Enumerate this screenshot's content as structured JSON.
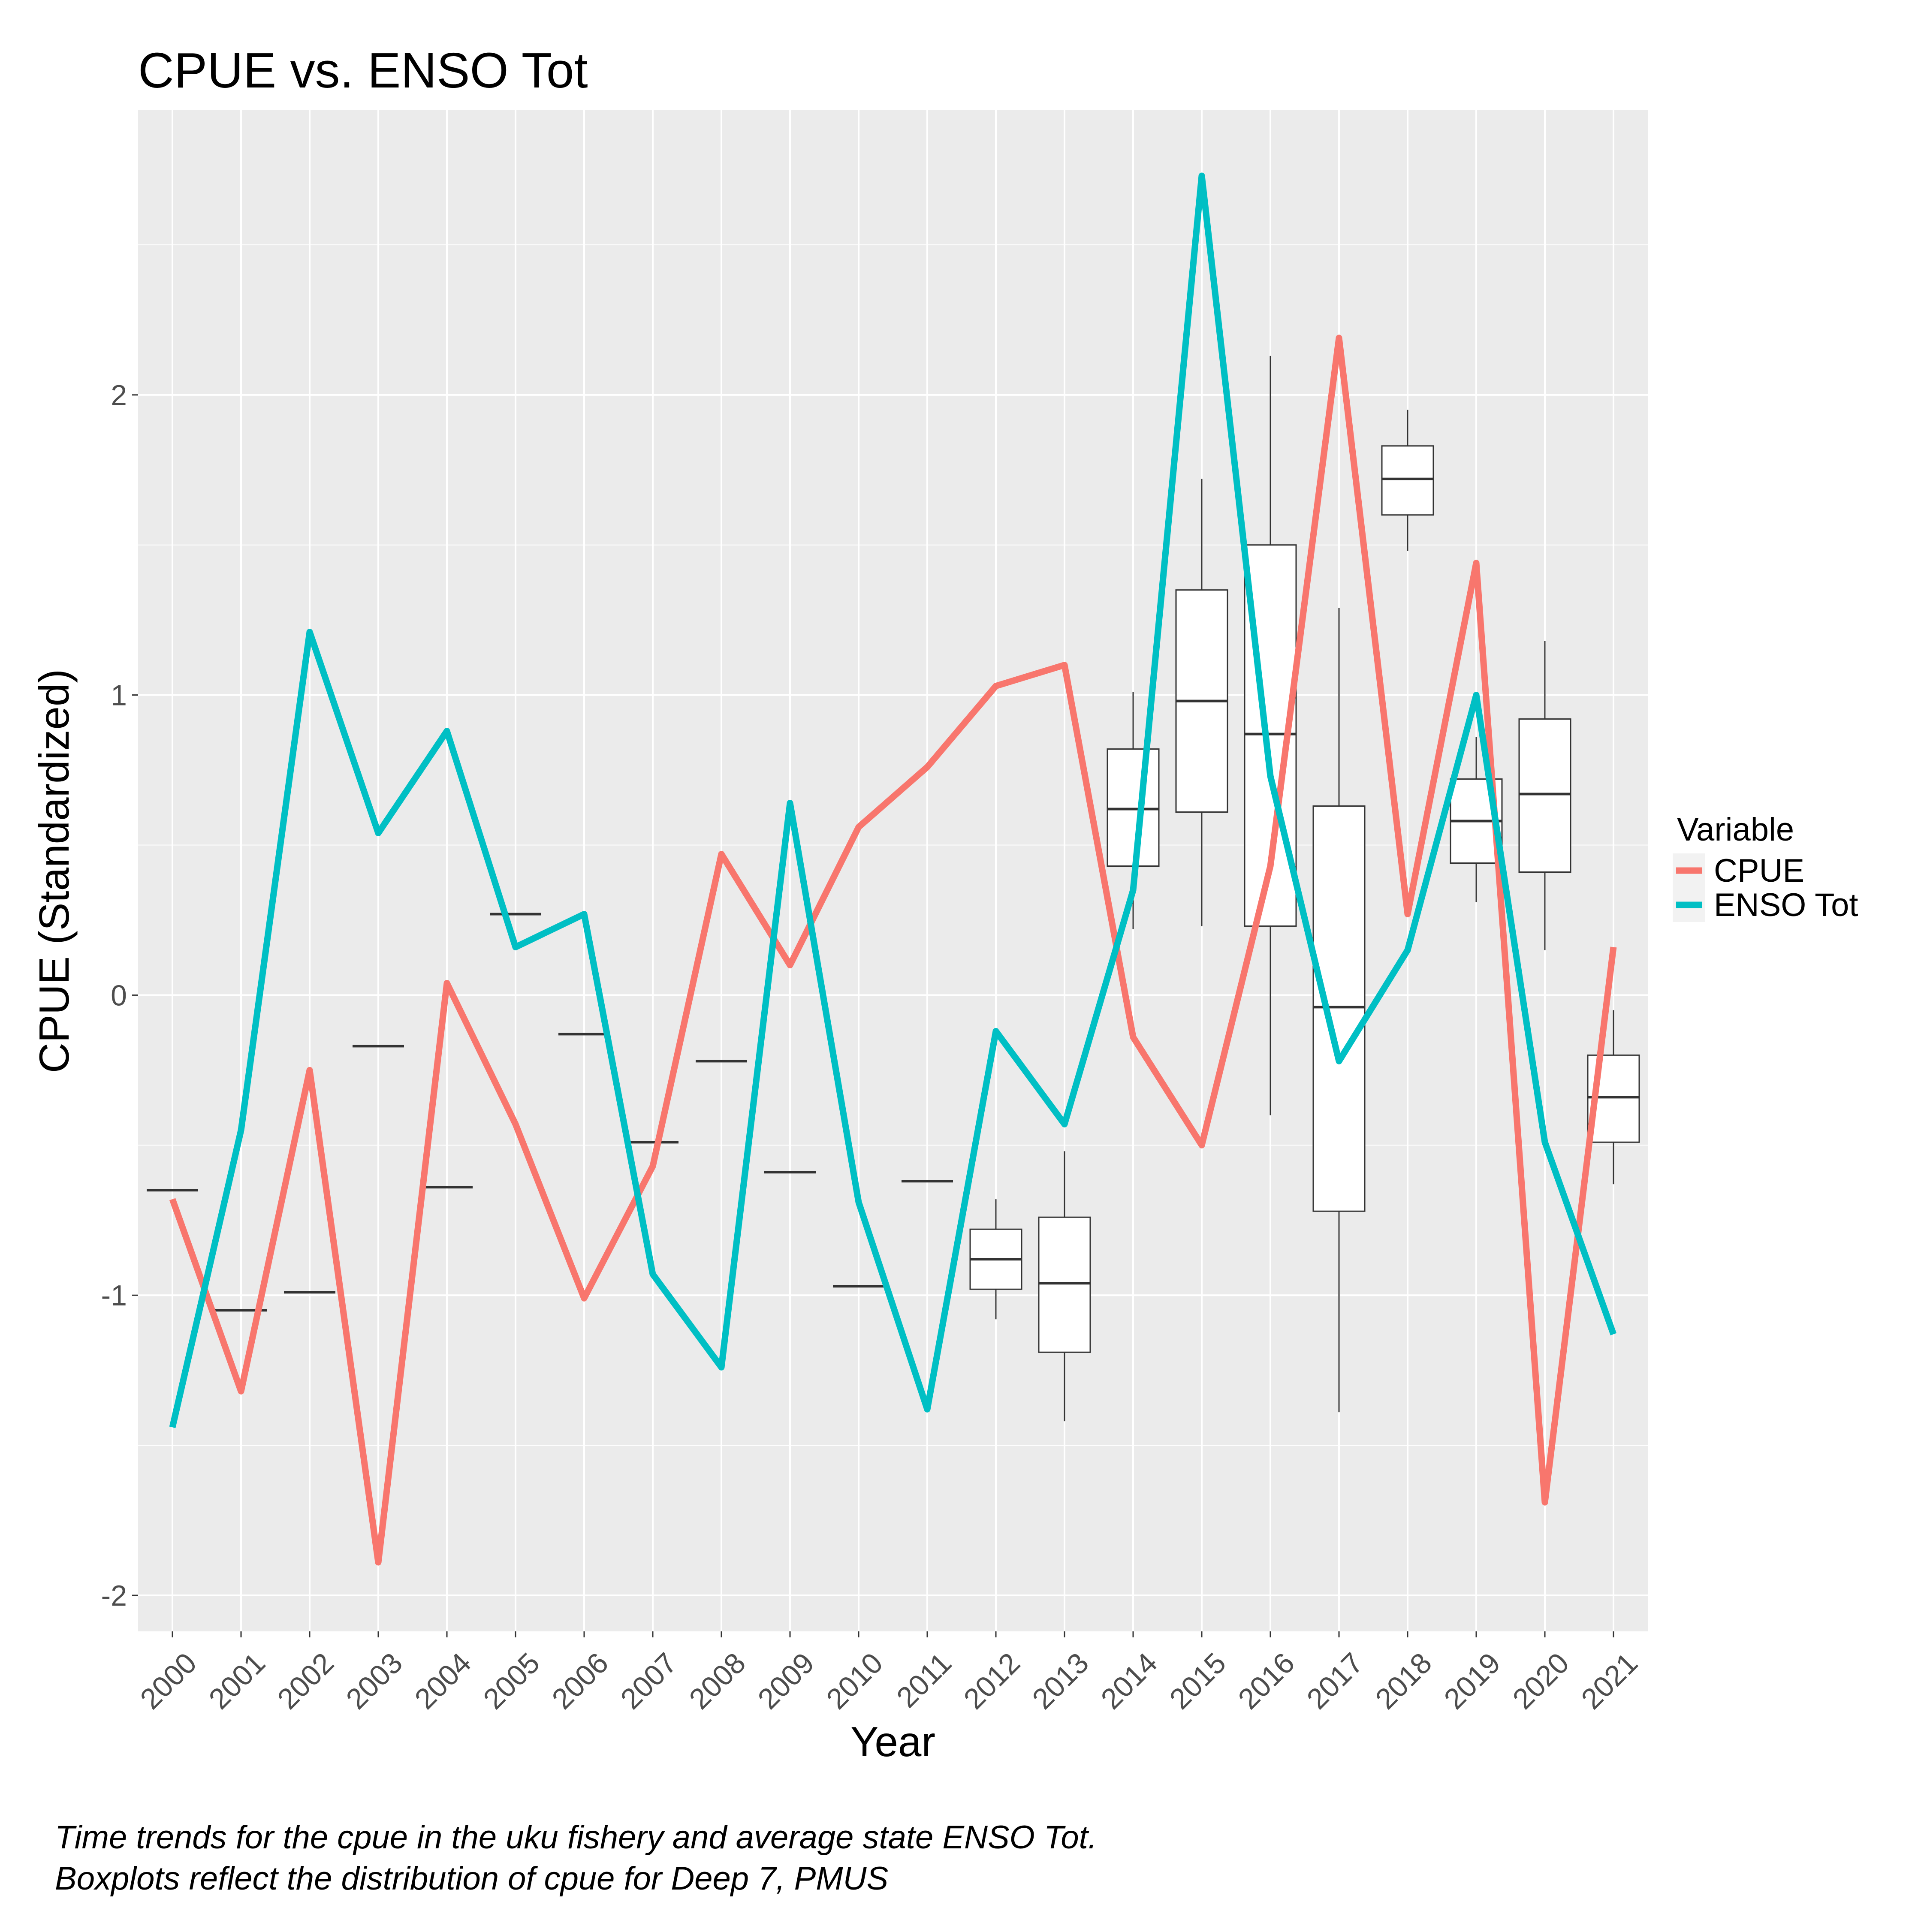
{
  "chart_data": {
    "type": "line",
    "title": "CPUE vs. ENSO Tot",
    "xlabel": "Year",
    "ylabel": "CPUE (Standardized)",
    "ylim": [
      -2.12,
      2.95
    ],
    "y_ticks": [
      -2,
      -1,
      0,
      1,
      2
    ],
    "y_tick_labels": [
      "-2",
      "-1",
      "0",
      "1",
      "2"
    ],
    "grid": true,
    "categories": [
      "2000",
      "2001",
      "2002",
      "2003",
      "2004",
      "2005",
      "2006",
      "2007",
      "2008",
      "2009",
      "2010",
      "2011",
      "2012",
      "2013",
      "2014",
      "2015",
      "2016",
      "2017",
      "2018",
      "2019",
      "2020",
      "2021"
    ],
    "legend": {
      "title": "Variable",
      "position": "right"
    },
    "series": [
      {
        "name": "CPUE",
        "color": "#F8766D",
        "values": [
          -0.68,
          -1.32,
          -0.25,
          -1.89,
          0.04,
          -0.43,
          -1.01,
          -0.57,
          0.47,
          0.1,
          0.56,
          0.76,
          1.03,
          1.1,
          -0.14,
          -0.5,
          0.43,
          2.19,
          0.27,
          1.44,
          -1.69,
          0.16
        ]
      },
      {
        "name": "ENSO Tot",
        "color": "#00BFC4",
        "values": [
          -1.44,
          -0.45,
          1.21,
          0.54,
          0.88,
          0.16,
          0.27,
          -0.93,
          -1.24,
          0.64,
          -0.69,
          -1.38,
          -0.12,
          -0.43,
          0.35,
          2.73,
          0.73,
          -0.22,
          0.15,
          1.0,
          -0.49,
          -1.13
        ]
      }
    ],
    "boxplots": [
      {
        "x": "2000",
        "min": -0.65,
        "q1": -0.65,
        "median": -0.65,
        "q3": -0.65,
        "max": -0.65
      },
      {
        "x": "2001",
        "min": -1.05,
        "q1": -1.05,
        "median": -1.05,
        "q3": -1.05,
        "max": -1.05
      },
      {
        "x": "2002",
        "min": -0.99,
        "q1": -0.99,
        "median": -0.99,
        "q3": -0.99,
        "max": -0.99
      },
      {
        "x": "2003",
        "min": -0.17,
        "q1": -0.17,
        "median": -0.17,
        "q3": -0.17,
        "max": -0.17
      },
      {
        "x": "2004",
        "min": -0.64,
        "q1": -0.64,
        "median": -0.64,
        "q3": -0.64,
        "max": -0.64
      },
      {
        "x": "2005",
        "min": 0.27,
        "q1": 0.27,
        "median": 0.27,
        "q3": 0.27,
        "max": 0.27
      },
      {
        "x": "2006",
        "min": -0.13,
        "q1": -0.13,
        "median": -0.13,
        "q3": -0.13,
        "max": -0.13
      },
      {
        "x": "2007",
        "min": -0.49,
        "q1": -0.49,
        "median": -0.49,
        "q3": -0.49,
        "max": -0.49
      },
      {
        "x": "2008",
        "min": -0.22,
        "q1": -0.22,
        "median": -0.22,
        "q3": -0.22,
        "max": -0.22
      },
      {
        "x": "2009",
        "min": -0.59,
        "q1": -0.59,
        "median": -0.59,
        "q3": -0.59,
        "max": -0.59
      },
      {
        "x": "2010",
        "min": -0.97,
        "q1": -0.97,
        "median": -0.97,
        "q3": -0.97,
        "max": -0.97
      },
      {
        "x": "2011",
        "min": -0.62,
        "q1": -0.62,
        "median": -0.62,
        "q3": -0.62,
        "max": -0.62
      },
      {
        "x": "2012",
        "min": -1.08,
        "q1": -0.98,
        "median": -0.88,
        "q3": -0.78,
        "max": -0.68
      },
      {
        "x": "2013",
        "min": -1.42,
        "q1": -1.19,
        "median": -0.96,
        "q3": -0.74,
        "max": -0.52
      },
      {
        "x": "2014",
        "min": 0.22,
        "q1": 0.43,
        "median": 0.62,
        "q3": 0.82,
        "max": 1.01
      },
      {
        "x": "2015",
        "min": 0.23,
        "q1": 0.61,
        "median": 0.98,
        "q3": 1.35,
        "max": 1.72
      },
      {
        "x": "2016",
        "min": -0.4,
        "q1": 0.23,
        "median": 0.87,
        "q3": 1.5,
        "max": 2.13
      },
      {
        "x": "2017",
        "min": -1.39,
        "q1": -0.72,
        "median": -0.04,
        "q3": 0.63,
        "max": 1.29
      },
      {
        "x": "2018",
        "min": 1.48,
        "q1": 1.6,
        "median": 1.72,
        "q3": 1.83,
        "max": 1.95
      },
      {
        "x": "2019",
        "min": 0.31,
        "q1": 0.44,
        "median": 0.58,
        "q3": 0.72,
        "max": 0.86
      },
      {
        "x": "2020",
        "min": 0.15,
        "q1": 0.41,
        "median": 0.67,
        "q3": 0.92,
        "max": 1.18
      },
      {
        "x": "2021",
        "min": -0.63,
        "q1": -0.49,
        "median": -0.34,
        "q3": -0.2,
        "max": -0.05
      }
    ],
    "caption_lines": [
      "Time trends for the cpue in the uku fishery and average state ENSO Tot.",
      " Boxplots reflect the distribution of cpue for Deep 7, PMUS"
    ]
  }
}
